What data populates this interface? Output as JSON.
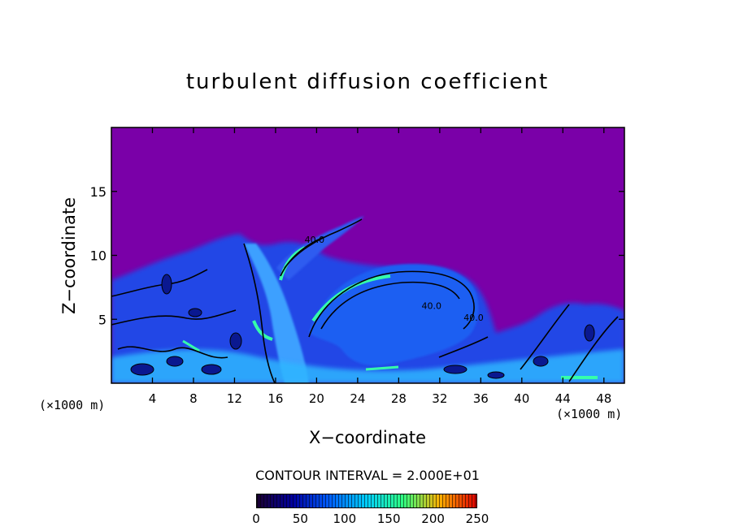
{
  "chart_data": {
    "type": "heatmap",
    "title": "turbulent diffusion coefficient",
    "xlabel": "X−coordinate",
    "ylabel": "Z−coordinate",
    "x_unit_left": "(×1000 m)",
    "x_unit_right": "(×1000 m)",
    "xlim": [
      0,
      50
    ],
    "ylim": [
      0,
      20
    ],
    "xticks": [
      4,
      8,
      12,
      16,
      20,
      24,
      28,
      32,
      36,
      40,
      44,
      48
    ],
    "yticks": [
      5,
      10,
      15
    ],
    "contour_interval_text": "CONTOUR INTERVAL = 2.000E+01",
    "contour_labels": [
      {
        "text": "40.0",
        "x": 19.8,
        "z": 11.0
      },
      {
        "text": "40.0",
        "x": 31.2,
        "z": 5.8
      },
      {
        "text": "40.0",
        "x": 35.3,
        "z": 4.9
      }
    ],
    "colorbar": {
      "min": 0,
      "max": 250,
      "ticks": [
        0,
        50,
        100,
        150,
        200,
        250
      ],
      "colors": [
        "#1a0030",
        "#0000a0",
        "#0060ff",
        "#00d0ff",
        "#30ff80",
        "#ffb000",
        "#e00000"
      ]
    },
    "background_color": "#7a00a8"
  }
}
